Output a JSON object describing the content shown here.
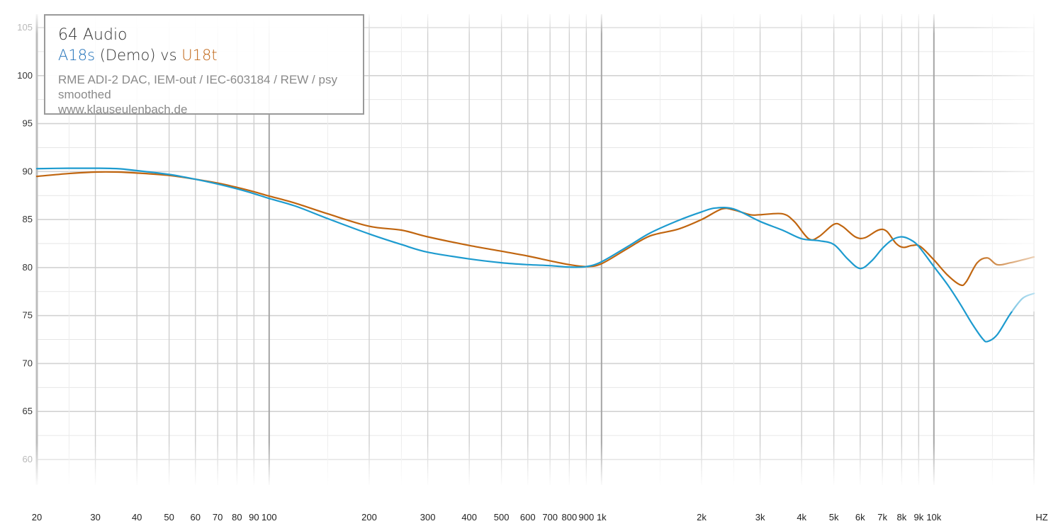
{
  "legend": {
    "title": "64 Audio",
    "series_a": "A18s",
    "series_a_suffix": " (Demo)",
    "vs": " vs ",
    "series_b": "U18t",
    "note_line1": "RME ADI-2 DAC, IEM-out / IEC-603184 / REW / psy smoothed",
    "note_line2": "www.klauseulenbach.de"
  },
  "chart_data": {
    "type": "line",
    "xscale": "log",
    "xlim": [
      20,
      20000
    ],
    "ylim": [
      60,
      105
    ],
    "grid": true,
    "legend_position": "top-left",
    "y_ticks": [
      60,
      65,
      70,
      75,
      80,
      85,
      90,
      95,
      100,
      105
    ],
    "x_ticks": [
      {
        "value": 20,
        "label": "20"
      },
      {
        "value": 30,
        "label": "30"
      },
      {
        "value": 40,
        "label": "40"
      },
      {
        "value": 50,
        "label": "50"
      },
      {
        "value": 60,
        "label": "60"
      },
      {
        "value": 70,
        "label": "70"
      },
      {
        "value": 80,
        "label": "80"
      },
      {
        "value": 90,
        "label": "90"
      },
      {
        "value": 100,
        "label": "100"
      },
      {
        "value": 200,
        "label": "200"
      },
      {
        "value": 300,
        "label": "300"
      },
      {
        "value": 400,
        "label": "400"
      },
      {
        "value": 500,
        "label": "500"
      },
      {
        "value": 600,
        "label": "600"
      },
      {
        "value": 700,
        "label": "700"
      },
      {
        "value": 800,
        "label": "800"
      },
      {
        "value": 900,
        "label": "900"
      },
      {
        "value": 1000,
        "label": "1k"
      },
      {
        "value": 2000,
        "label": "2k"
      },
      {
        "value": 3000,
        "label": "3k"
      },
      {
        "value": 4000,
        "label": "4k"
      },
      {
        "value": 5000,
        "label": "5k"
      },
      {
        "value": 6000,
        "label": "6k"
      },
      {
        "value": 7000,
        "label": "7k"
      },
      {
        "value": 8000,
        "label": "8k"
      },
      {
        "value": 9000,
        "label": "9k"
      },
      {
        "value": 10000,
        "label": "10k"
      }
    ],
    "x_unit": "HZ",
    "series": [
      {
        "name": "A18s",
        "color": "#1d9bcf",
        "points": [
          [
            20,
            90.3
          ],
          [
            25,
            90.35
          ],
          [
            30,
            90.35
          ],
          [
            35,
            90.3
          ],
          [
            40,
            90.1
          ],
          [
            50,
            89.7
          ],
          [
            60,
            89.2
          ],
          [
            70,
            88.7
          ],
          [
            80,
            88.2
          ],
          [
            90,
            87.7
          ],
          [
            100,
            87.2
          ],
          [
            120,
            86.4
          ],
          [
            150,
            85.1
          ],
          [
            200,
            83.5
          ],
          [
            250,
            82.4
          ],
          [
            300,
            81.6
          ],
          [
            400,
            80.9
          ],
          [
            500,
            80.5
          ],
          [
            600,
            80.3
          ],
          [
            700,
            80.2
          ],
          [
            800,
            80.05
          ],
          [
            900,
            80.1
          ],
          [
            1000,
            80.6
          ],
          [
            1200,
            82.2
          ],
          [
            1400,
            83.6
          ],
          [
            1700,
            84.9
          ],
          [
            2000,
            85.8
          ],
          [
            2200,
            86.2
          ],
          [
            2500,
            86.1
          ],
          [
            3000,
            84.8
          ],
          [
            3500,
            83.9
          ],
          [
            4000,
            83.0
          ],
          [
            4500,
            82.8
          ],
          [
            5000,
            82.4
          ],
          [
            5500,
            80.9
          ],
          [
            6000,
            79.9
          ],
          [
            6500,
            80.7
          ],
          [
            7000,
            82.0
          ],
          [
            7500,
            82.9
          ],
          [
            8000,
            83.2
          ],
          [
            8500,
            82.9
          ],
          [
            9000,
            82.2
          ],
          [
            10000,
            80.1
          ],
          [
            11000,
            78.2
          ],
          [
            12000,
            76.2
          ],
          [
            13000,
            74.2
          ],
          [
            14000,
            72.6
          ],
          [
            14500,
            72.3
          ],
          [
            15500,
            73.0
          ],
          [
            17000,
            75.2
          ],
          [
            18500,
            76.8
          ],
          [
            20000,
            77.3
          ]
        ]
      },
      {
        "name": "U18t",
        "color": "#c0650f",
        "points": [
          [
            20,
            89.5
          ],
          [
            25,
            89.8
          ],
          [
            30,
            89.95
          ],
          [
            35,
            89.95
          ],
          [
            40,
            89.85
          ],
          [
            50,
            89.6
          ],
          [
            60,
            89.2
          ],
          [
            70,
            88.8
          ],
          [
            80,
            88.35
          ],
          [
            90,
            87.9
          ],
          [
            100,
            87.45
          ],
          [
            120,
            86.7
          ],
          [
            150,
            85.6
          ],
          [
            200,
            84.3
          ],
          [
            250,
            83.9
          ],
          [
            300,
            83.2
          ],
          [
            400,
            82.3
          ],
          [
            500,
            81.7
          ],
          [
            600,
            81.2
          ],
          [
            700,
            80.7
          ],
          [
            800,
            80.3
          ],
          [
            900,
            80.1
          ],
          [
            1000,
            80.4
          ],
          [
            1200,
            82.0
          ],
          [
            1400,
            83.3
          ],
          [
            1700,
            84.0
          ],
          [
            2000,
            85.0
          ],
          [
            2300,
            86.1
          ],
          [
            2500,
            86.0
          ],
          [
            2800,
            85.5
          ],
          [
            3000,
            85.5
          ],
          [
            3500,
            85.6
          ],
          [
            3800,
            84.8
          ],
          [
            4200,
            83.0
          ],
          [
            4500,
            83.2
          ],
          [
            5000,
            84.5
          ],
          [
            5300,
            84.3
          ],
          [
            5800,
            83.2
          ],
          [
            6200,
            83.1
          ],
          [
            6800,
            83.9
          ],
          [
            7200,
            83.8
          ],
          [
            7700,
            82.5
          ],
          [
            8100,
            82.1
          ],
          [
            8600,
            82.3
          ],
          [
            9100,
            82.2
          ],
          [
            10000,
            80.8
          ],
          [
            11000,
            79.2
          ],
          [
            12000,
            78.2
          ],
          [
            12500,
            78.5
          ],
          [
            13500,
            80.5
          ],
          [
            14500,
            81.0
          ],
          [
            15500,
            80.3
          ],
          [
            17000,
            80.5
          ],
          [
            20000,
            81.1
          ]
        ]
      }
    ]
  }
}
